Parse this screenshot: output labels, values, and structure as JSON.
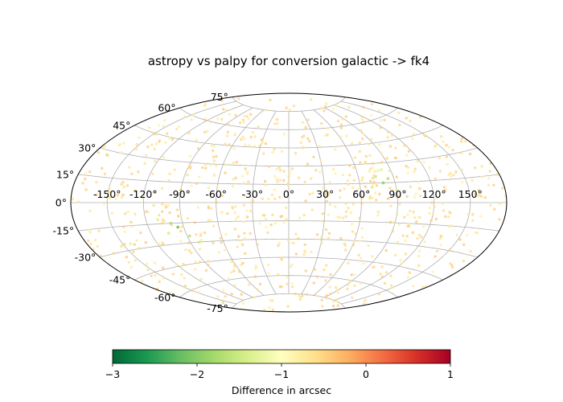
{
  "chart_data": {
    "type": "scatter",
    "projection": "aitoff",
    "title": "astropy vs palpy for conversion galactic -> fk4",
    "grid": true,
    "lon_ticks": [
      -150,
      -120,
      -90,
      -60,
      -30,
      0,
      30,
      60,
      90,
      120,
      150
    ],
    "lon_tick_labels": [
      "-150°",
      "-120°",
      "-90°",
      "-60°",
      "-30°",
      "0°",
      "30°",
      "60°",
      "90°",
      "120°",
      "150°"
    ],
    "lat_ticks": [
      75,
      60,
      45,
      30,
      15,
      0,
      -15,
      -30,
      -45,
      -60,
      -75
    ],
    "lat_tick_labels": [
      "75°",
      "60°",
      "45°",
      "30°",
      "15°",
      "0°",
      "-15°",
      "-30°",
      "-45°",
      "-60°",
      "-75°"
    ],
    "colorbar": {
      "label": "Difference in arcsec",
      "range": [
        -3,
        1
      ],
      "ticks": [
        -3,
        -2,
        -1,
        0,
        1
      ],
      "tick_labels": [
        "−3",
        "−2",
        "−1",
        "0",
        "1"
      ],
      "colormap": "RdYlGn_r"
    },
    "point_color_typical": -0.6,
    "highlights": [
      {
        "lon": 80,
        "lat": 15,
        "value": -1.9
      },
      {
        "lon": 85,
        "lat": 18,
        "value": -1.6
      },
      {
        "lon": 75,
        "lat": 20,
        "value": -1.5
      },
      {
        "lon": 70,
        "lat": 12,
        "value": -1.4
      },
      {
        "lon": 90,
        "lat": 10,
        "value": -1.3
      },
      {
        "lon": 82,
        "lat": 25,
        "value": -1.3
      },
      {
        "lon": -95,
        "lat": -18,
        "value": -2.1
      },
      {
        "lon": -100,
        "lat": -15,
        "value": -1.7
      },
      {
        "lon": -88,
        "lat": -25,
        "value": -1.6
      },
      {
        "lon": -105,
        "lat": -22,
        "value": -1.4
      },
      {
        "lon": -82,
        "lat": -30,
        "value": -1.5
      },
      {
        "lon": -110,
        "lat": -12,
        "value": -1.3
      },
      {
        "lon": -90,
        "lat": -10,
        "value": -1.2
      },
      {
        "lon": -115,
        "lat": -28,
        "value": -1.2
      }
    ]
  }
}
